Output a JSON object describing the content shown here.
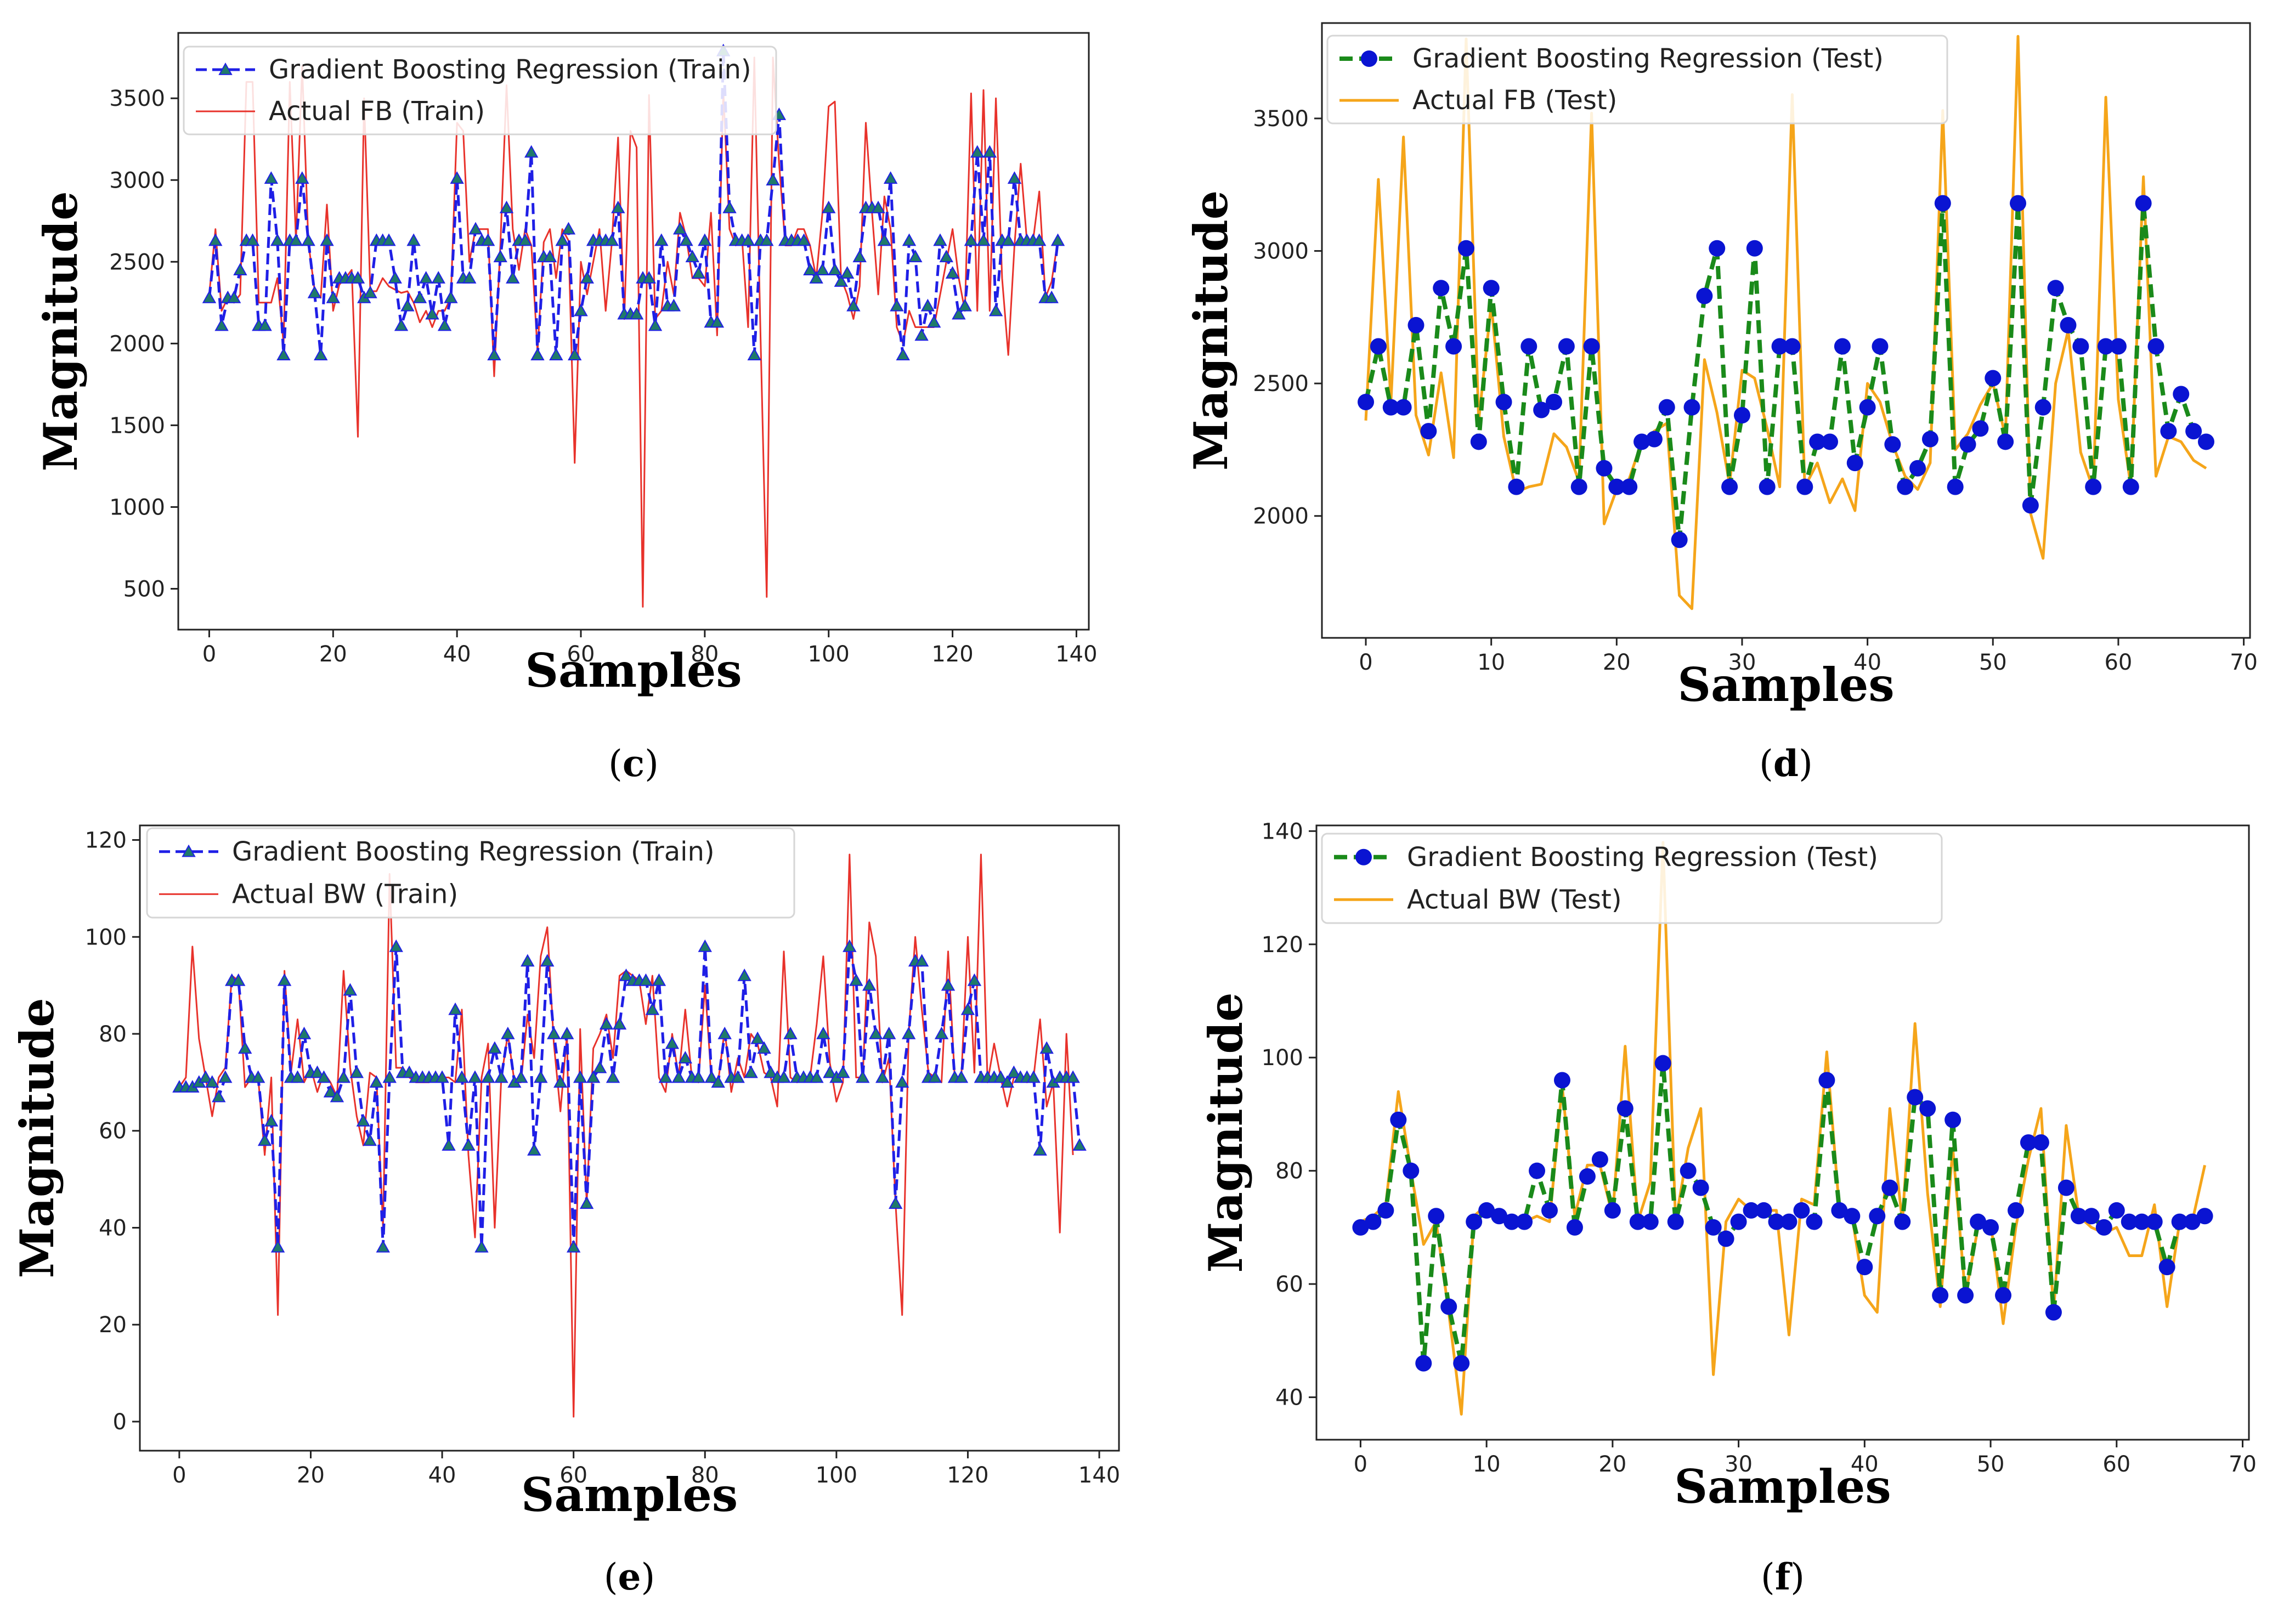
{
  "colors": {
    "gbr_train": "#1f1fe6",
    "gbr_test": "#1a8a1a",
    "marker_blue": "#0a14d2",
    "marker_teal": "#1f7a6a",
    "actual_train": "#e8322b",
    "actual_test": "#f5a51a"
  },
  "chart_data": [
    {
      "id": "c",
      "type": "line",
      "caption_letter": "c",
      "xlabel": "Samples",
      "ylabel": "Magnitude",
      "xlim": [
        -5,
        142
      ],
      "ylim": [
        250,
        3900
      ],
      "xticks": [
        0,
        20,
        40,
        60,
        80,
        100,
        120,
        140
      ],
      "yticks": [
        500,
        1000,
        1500,
        2000,
        2500,
        3000,
        3500
      ],
      "legend_position": "top-left",
      "series": [
        {
          "name": "Gradient Boosting Regression (Train)",
          "role": "predicted",
          "style": "dashed-triangle",
          "color": "#1f1fe6",
          "marker_color": "#1f7a6a",
          "values": [
            2280,
            2630,
            2110,
            2280,
            2280,
            2450,
            2630,
            2630,
            2110,
            2110,
            3010,
            2630,
            1930,
            2630,
            2630,
            3010,
            2630,
            2310,
            1930,
            2630,
            2280,
            2400,
            2400,
            2400,
            2400,
            2280,
            2310,
            2630,
            2630,
            2630,
            2400,
            2110,
            2230,
            2630,
            2280,
            2400,
            2180,
            2400,
            2110,
            2280,
            3010,
            2400,
            2400,
            2700,
            2630,
            2630,
            1930,
            2530,
            2830,
            2400,
            2630,
            2630,
            3170,
            1930,
            2530,
            2530,
            1930,
            2630,
            2700,
            1930,
            2200,
            2400,
            2630,
            2630,
            2630,
            2630,
            2830,
            2180,
            2180,
            2180,
            2400,
            2400,
            2110,
            2630,
            2230,
            2230,
            2700,
            2630,
            2530,
            2430,
            2630,
            2130,
            2130,
            3790,
            2830,
            2630,
            2630,
            2630,
            1930,
            2630,
            2630,
            3000,
            3400,
            2630,
            2630,
            2630,
            2630,
            2450,
            2400,
            2450,
            2830,
            2450,
            2380,
            2430,
            2230,
            2530,
            2830,
            2830,
            2830,
            2630,
            3010,
            2230,
            1930,
            2630,
            2530,
            2050,
            2230,
            2130,
            2630,
            2530,
            2430,
            2180,
            2230,
            2630,
            3170,
            2630,
            3170,
            2200,
            2630,
            2630,
            3010,
            2630,
            2630,
            2630,
            2630,
            2280,
            2280,
            2630
          ]
        },
        {
          "name": "Actual FB (Train)",
          "role": "actual",
          "style": "solid",
          "color": "#e8322b",
          "values": [
            2300,
            2700,
            2200,
            2280,
            2250,
            2300,
            3600,
            3600,
            2250,
            2250,
            2250,
            2400,
            2000,
            3600,
            2630,
            3700,
            2620,
            2330,
            2280,
            2850,
            2200,
            2360,
            2400,
            2450,
            1430,
            3500,
            2320,
            2320,
            2400,
            2350,
            2330,
            2310,
            2320,
            2250,
            2130,
            2200,
            2100,
            2200,
            2200,
            2280,
            3350,
            3300,
            2500,
            2700,
            2700,
            2700,
            1800,
            2600,
            3580,
            2700,
            2450,
            2700,
            2600,
            1950,
            2620,
            2700,
            2400,
            2700,
            2630,
            1270,
            2500,
            2300,
            2500,
            2700,
            2200,
            2620,
            3260,
            2150,
            3300,
            3200,
            390,
            3520,
            2150,
            2200,
            2500,
            2300,
            2800,
            2650,
            2400,
            2400,
            2350,
            2800,
            2050,
            3550,
            2700,
            2600,
            2650,
            2100,
            3750,
            2050,
            450,
            3750,
            3100,
            2600,
            2600,
            2700,
            2700,
            2600,
            2400,
            2800,
            3450,
            3480,
            2400,
            2300,
            2150,
            2350,
            3350,
            2800,
            2300,
            2900,
            2700,
            2100,
            2000,
            2200,
            2100,
            2100,
            2100,
            2100,
            2300,
            2500,
            2700,
            2400,
            2200,
            3530,
            2200,
            3550,
            2200,
            3500,
            2400,
            1930,
            2600,
            3100,
            2630,
            2630,
            2930,
            2280,
            2380,
            2630
          ]
        }
      ]
    },
    {
      "id": "d",
      "type": "line",
      "caption_letter": "d",
      "xlabel": "Samples",
      "ylabel": "Magnitude",
      "xlim": [
        -3.5,
        70.5
      ],
      "ylim": [
        1540,
        3860
      ],
      "xticks": [
        0,
        10,
        20,
        30,
        40,
        50,
        60,
        70
      ],
      "yticks": [
        2000,
        2500,
        3000,
        3500
      ],
      "legend_position": "top-left",
      "series": [
        {
          "name": "Gradient Boosting Regression (Test)",
          "role": "predicted",
          "style": "dashed-circle",
          "color": "#1a8a1a",
          "marker_color": "#0a14d2",
          "values": [
            2430,
            2640,
            2410,
            2410,
            2720,
            2320,
            2860,
            2640,
            3010,
            2280,
            2860,
            2430,
            2110,
            2640,
            2400,
            2430,
            2640,
            2110,
            2640,
            2180,
            2110,
            2110,
            2280,
            2290,
            2410,
            1910,
            2410,
            2830,
            3010,
            2110,
            2380,
            3010,
            2110,
            2640,
            2640,
            2110,
            2280,
            2280,
            2640,
            2200,
            2410,
            2640,
            2270,
            2110,
            2180,
            2290,
            3180,
            2110,
            2270,
            2330,
            2520,
            2280,
            3180,
            2040,
            2410,
            2860,
            2720,
            2640,
            2110,
            2640,
            2640,
            2110,
            3180,
            2640,
            2320,
            2460,
            2320,
            2280
          ]
        },
        {
          "name": "Actual FB (Test)",
          "role": "actual",
          "style": "solid",
          "color": "#f5a51a",
          "values": [
            2360,
            3270,
            2430,
            3430,
            2380,
            2230,
            2540,
            2220,
            3800,
            2360,
            2800,
            2300,
            2090,
            2110,
            2120,
            2310,
            2260,
            2130,
            3520,
            1970,
            2100,
            2140,
            2280,
            2320,
            2350,
            1700,
            1650,
            2590,
            2390,
            2120,
            2550,
            2520,
            2330,
            2110,
            3590,
            2110,
            2200,
            2050,
            2140,
            2020,
            2500,
            2430,
            2270,
            2150,
            2100,
            2200,
            3530,
            2250,
            2310,
            2420,
            2500,
            2300,
            3810,
            2010,
            1840,
            2500,
            2700,
            2240,
            2100,
            3580,
            2440,
            2110,
            3280,
            2150,
            2300,
            2280,
            2210,
            2180
          ]
        }
      ]
    },
    {
      "id": "e",
      "type": "line",
      "caption_letter": "e",
      "xlabel": "Samples",
      "ylabel": "Magnitude",
      "xlim": [
        -6,
        143
      ],
      "ylim": [
        -6,
        123
      ],
      "xticks": [
        0,
        20,
        40,
        60,
        80,
        100,
        120,
        140
      ],
      "yticks": [
        0,
        20,
        40,
        60,
        80,
        100,
        120
      ],
      "legend_position": "top-left",
      "series": [
        {
          "name": "Gradient Boosting Regression (Train)",
          "role": "predicted",
          "style": "dashed-triangle",
          "color": "#1f1fe6",
          "marker_color": "#1f7a6a",
          "values": [
            69,
            69,
            69,
            70,
            71,
            70,
            67,
            71,
            91,
            91,
            77,
            71,
            71,
            58,
            62,
            36,
            91,
            71,
            71,
            80,
            72,
            72,
            71,
            68,
            67,
            71,
            89,
            72,
            62,
            58,
            70,
            36,
            71,
            98,
            72,
            72,
            71,
            71,
            71,
            71,
            71,
            57,
            85,
            71,
            57,
            71,
            36,
            71,
            77,
            71,
            80,
            70,
            71,
            95,
            56,
            71,
            95,
            80,
            70,
            80,
            36,
            71,
            45,
            71,
            73,
            82,
            71,
            82,
            92,
            91,
            91,
            91,
            85,
            91,
            71,
            78,
            71,
            75,
            71,
            71,
            98,
            71,
            70,
            80,
            71,
            71,
            92,
            72,
            79,
            77,
            72,
            71,
            71,
            80,
            71,
            71,
            71,
            71,
            80,
            72,
            71,
            72,
            98,
            91,
            71,
            90,
            80,
            71,
            80,
            45,
            70,
            80,
            95,
            95,
            71,
            71,
            80,
            90,
            71,
            71,
            85,
            91,
            71,
            71,
            71,
            71,
            70,
            72,
            71,
            71,
            71,
            56,
            77,
            70,
            71,
            71,
            71,
            57
          ]
        },
        {
          "name": "Actual BW (Train)",
          "role": "actual",
          "style": "solid",
          "color": "#e8322b",
          "values": [
            69,
            71,
            98,
            79,
            71,
            63,
            71,
            73,
            92,
            91,
            69,
            71,
            71,
            55,
            71,
            22,
            93,
            72,
            83,
            70,
            73,
            68,
            72,
            70,
            67,
            93,
            73,
            63,
            57,
            72,
            71,
            40,
            113,
            73,
            73,
            71,
            70,
            70,
            70,
            71,
            71,
            71,
            70,
            85,
            55,
            38,
            71,
            78,
            40,
            71,
            80,
            70,
            70,
            84,
            75,
            96,
            102,
            78,
            64,
            80,
            1,
            81,
            45,
            77,
            80,
            84,
            75,
            92,
            93,
            92,
            91,
            82,
            92,
            71,
            68,
            80,
            71,
            85,
            71,
            70,
            90,
            70,
            70,
            81,
            68,
            75,
            71,
            80,
            78,
            72,
            71,
            65,
            97,
            71,
            70,
            71,
            71,
            82,
            96,
            74,
            66,
            70,
            117,
            71,
            71,
            103,
            96,
            70,
            75,
            45,
            22,
            80,
            100,
            85,
            72,
            71,
            70,
            97,
            71,
            71,
            100,
            72,
            117,
            70,
            78,
            71,
            65,
            71,
            71,
            70,
            71,
            83,
            65,
            70,
            39,
            80,
            55
          ]
        }
      ]
    },
    {
      "id": "f",
      "type": "line",
      "caption_letter": "f",
      "xlabel": "Samples",
      "ylabel": "Magnitude",
      "xlim": [
        -3.5,
        70.5
      ],
      "ylim": [
        32.5,
        141
      ],
      "xticks": [
        0,
        10,
        20,
        30,
        40,
        50,
        60,
        70
      ],
      "yticks": [
        40,
        60,
        80,
        100,
        120,
        140
      ],
      "legend_position": "top-left",
      "series": [
        {
          "name": "Gradient Boosting Regression (Test)",
          "role": "predicted",
          "style": "dashed-circle",
          "color": "#1a8a1a",
          "marker_color": "#0a14d2",
          "values": [
            70,
            71,
            73,
            89,
            80,
            46,
            72,
            56,
            46,
            71,
            73,
            72,
            71,
            71,
            80,
            73,
            96,
            70,
            79,
            82,
            73,
            91,
            71,
            71,
            99,
            71,
            80,
            77,
            70,
            68,
            71,
            73,
            73,
            71,
            71,
            73,
            71,
            96,
            73,
            72,
            63,
            72,
            77,
            71,
            93,
            91,
            58,
            89,
            58,
            71,
            70,
            58,
            73,
            85,
            85,
            55,
            77,
            72,
            72,
            70,
            73,
            71,
            71,
            71,
            63,
            71,
            71,
            72
          ]
        },
        {
          "name": "Actual BW (Test)",
          "role": "actual",
          "style": "solid",
          "color": "#f5a51a",
          "values": [
            71,
            72,
            74,
            94,
            80,
            67,
            71,
            55,
            37,
            72,
            74,
            71,
            72,
            71,
            72,
            71,
            95,
            72,
            81,
            81,
            72,
            102,
            71,
            78,
            138,
            71,
            84,
            91,
            44,
            71,
            75,
            73,
            73,
            73,
            51,
            75,
            74,
            101,
            73,
            72,
            58,
            55,
            91,
            71,
            106,
            76,
            56,
            84,
            58,
            70,
            71,
            53,
            70,
            82,
            91,
            55,
            88,
            72,
            70,
            69,
            70,
            65,
            65,
            74,
            56,
            71,
            71,
            81
          ]
        }
      ]
    }
  ]
}
